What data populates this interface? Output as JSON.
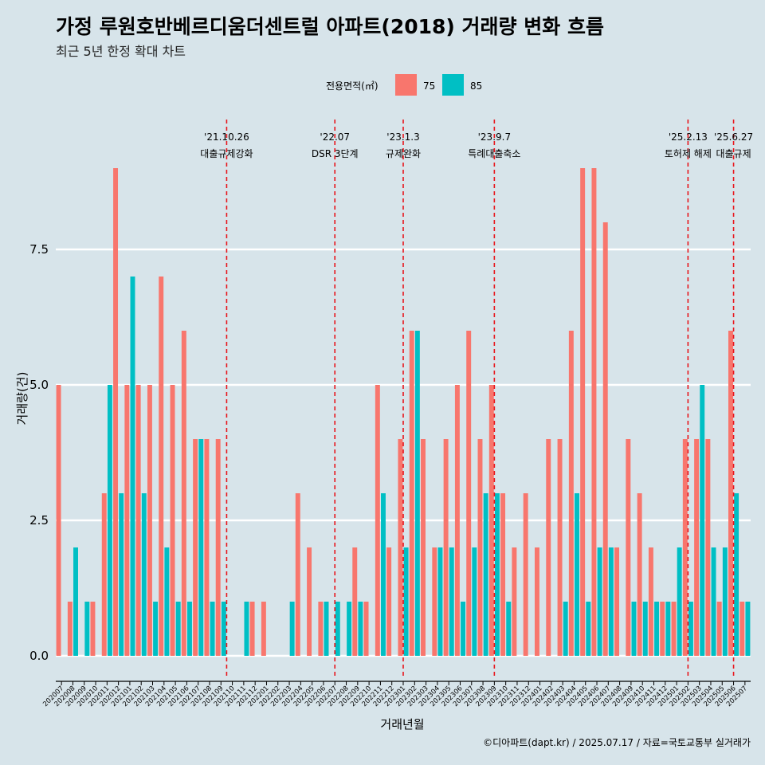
{
  "chart_data": {
    "type": "bar",
    "title": "가정 루원호반베르디움더센트럴 아파트(2018) 거래량 변화 흐름",
    "subtitle": "최근 5년 한정 확대 차트",
    "xlabel": "거래년월",
    "ylabel": "거래량(건)",
    "caption": "©디아파트(dapt.kr) / 2025.07.17 / 자료=국토교통부 실거래가",
    "legend_title": "전용면적(㎡)",
    "legend_position": "top",
    "ylim": [
      -0.45,
      9.2
    ],
    "yticks": [
      0.0,
      2.5,
      5.0,
      7.5
    ],
    "ytick_labels": [
      "0.0",
      "2.5",
      "5.0",
      "7.5"
    ],
    "categories": [
      "202007",
      "202008",
      "202009",
      "202010",
      "202011",
      "202012",
      "202101",
      "202102",
      "202103",
      "202104",
      "202105",
      "202106",
      "202107",
      "202108",
      "202109",
      "202110",
      "202111",
      "202112",
      "202201",
      "202202",
      "202203",
      "202204",
      "202205",
      "202206",
      "202207",
      "202208",
      "202209",
      "202210",
      "202211",
      "202212",
      "202301",
      "202302",
      "202303",
      "202304",
      "202305",
      "202306",
      "202307",
      "202308",
      "202309",
      "202310",
      "202311",
      "202312",
      "202401",
      "202402",
      "202403",
      "202404",
      "202405",
      "202406",
      "202407",
      "202408",
      "202409",
      "202410",
      "202411",
      "202412",
      "202501",
      "202502",
      "202503",
      "202504",
      "202505",
      "202506",
      "202507"
    ],
    "series": [
      {
        "name": "75",
        "color": "#f8766d",
        "values": [
          5,
          1,
          0,
          1,
          3,
          9,
          5,
          5,
          5,
          7,
          5,
          6,
          4,
          4,
          4,
          0,
          0,
          1,
          1,
          0,
          0,
          3,
          2,
          1,
          0,
          0,
          2,
          1,
          5,
          2,
          4,
          6,
          4,
          2,
          4,
          5,
          6,
          4,
          5,
          3,
          2,
          3,
          2,
          4,
          4,
          6,
          9,
          9,
          8,
          2,
          4,
          3,
          2,
          1,
          1,
          4,
          4,
          4,
          1,
          6,
          1
        ]
      },
      {
        "name": "85",
        "color": "#00bfc4",
        "values": [
          0,
          2,
          1,
          0,
          5,
          3,
          7,
          3,
          1,
          2,
          1,
          1,
          4,
          1,
          1,
          0,
          1,
          0,
          0,
          0,
          1,
          0,
          0,
          1,
          1,
          1,
          1,
          0,
          3,
          0,
          2,
          6,
          0,
          2,
          2,
          1,
          2,
          3,
          3,
          1,
          0,
          0,
          0,
          0,
          1,
          3,
          1,
          2,
          2,
          0,
          1,
          1,
          1,
          1,
          2,
          1,
          5,
          2,
          2,
          3,
          1
        ]
      }
    ],
    "events": [
      {
        "after_category": "202110",
        "offset": -0.5,
        "date": "'21.10.26",
        "label": "대출규제강화"
      },
      {
        "after_category": "202207",
        "offset": 0,
        "date": "'22.07",
        "label": "DSR 3단계"
      },
      {
        "after_category": "202301",
        "offset": 0,
        "date": "'23.1.3",
        "label": "규제완화"
      },
      {
        "after_category": "202309",
        "offset": 0,
        "date": "'23.9.7",
        "label": "특례대출축소"
      },
      {
        "after_category": "202502",
        "offset": 0,
        "date": "'25.2.13",
        "label": "토허제 해제"
      },
      {
        "after_category": "202506",
        "offset": 0,
        "date": "'25.6.27",
        "label": "대출규제"
      }
    ],
    "grid": true
  }
}
